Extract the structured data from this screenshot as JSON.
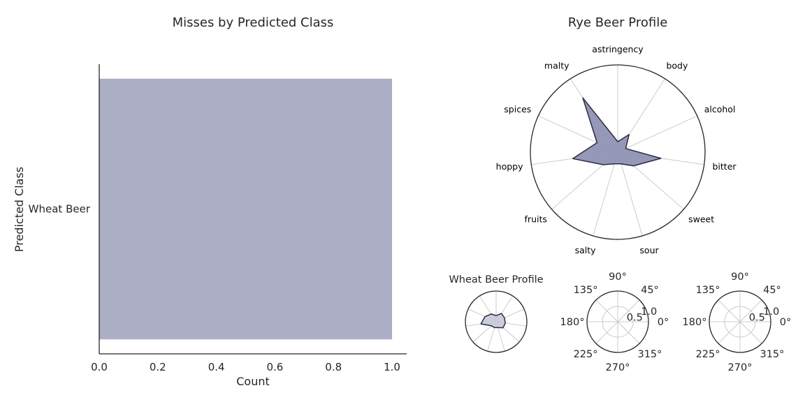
{
  "chart_data": [
    {
      "type": "bar",
      "orientation": "horizontal",
      "title": "Misses by Predicted Class",
      "xlabel": "Count",
      "ylabel": "Predicted Class",
      "categories": [
        "Wheat Beer"
      ],
      "values": [
        1.0
      ],
      "xlim": [
        0,
        1.05
      ],
      "xticks": [
        "0.0",
        "0.2",
        "0.4",
        "0.6",
        "0.8",
        "1.0"
      ],
      "bar_color": "#abaec4",
      "grid": false
    },
    {
      "type": "radar",
      "title": "Rye Beer Profile",
      "axes": [
        "astringency",
        "body",
        "alcohol",
        "bitter",
        "sweet",
        "sour",
        "salty",
        "fruits",
        "hoppy",
        "spices",
        "malty"
      ],
      "values": [
        0.12,
        0.24,
        0.1,
        0.5,
        0.24,
        0.14,
        0.14,
        0.22,
        0.52,
        0.26,
        0.74
      ],
      "rmax": 1.0,
      "fill_color": "#8f92b2",
      "line_color": "#2a2b45"
    },
    {
      "type": "radar",
      "title": "Wheat Beer Profile",
      "values": [
        0.2,
        0.32,
        0.3,
        0.3,
        0.3,
        0.2,
        0.2,
        0.2,
        0.5,
        0.4,
        0.3
      ],
      "rmax": 1.0,
      "fill_color": "#c8cad9",
      "line_color": "#2a2b45"
    },
    {
      "type": "polar",
      "title": "",
      "angle_labels": [
        "0°",
        "45°",
        "90°",
        "135°",
        "180°",
        "225°",
        "270°",
        "315°"
      ],
      "radial_labels": [
        "0.5",
        "1.0"
      ],
      "series": []
    },
    {
      "type": "polar",
      "title": "",
      "angle_labels": [
        "0°",
        "45°",
        "90°",
        "135°",
        "180°",
        "225°",
        "270°",
        "315°"
      ],
      "radial_labels": [
        "0.5",
        "1.0"
      ],
      "series": []
    }
  ]
}
